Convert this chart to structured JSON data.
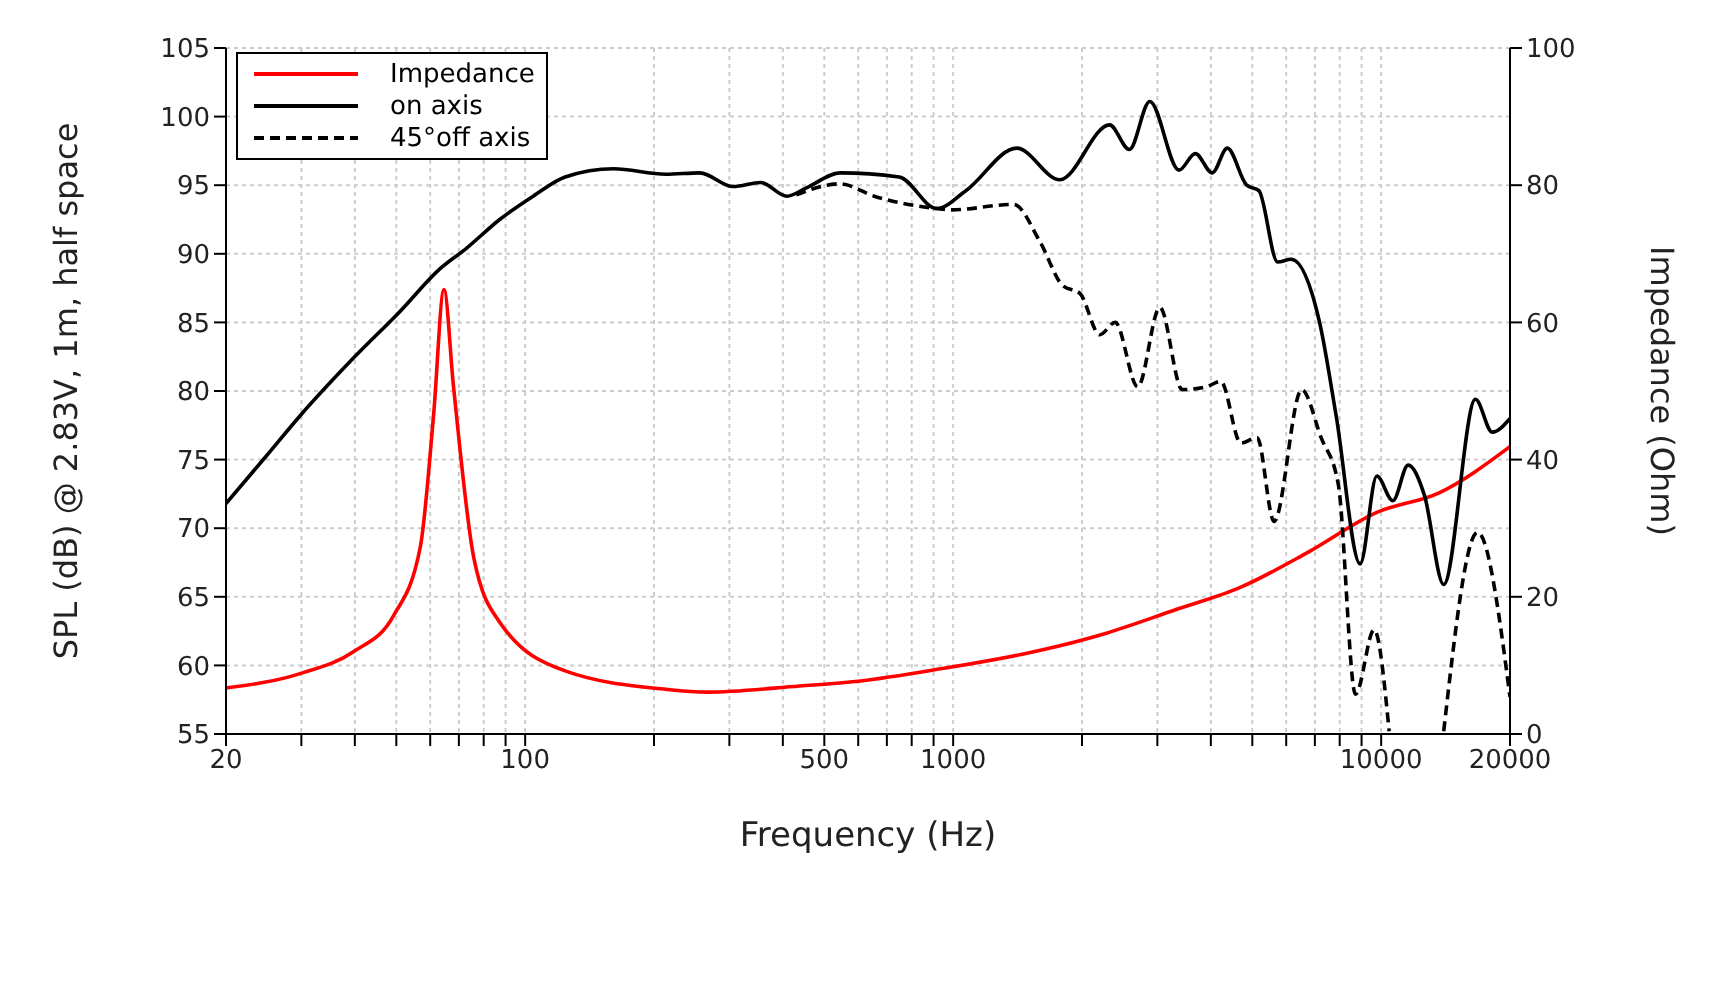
{
  "chart_data": {
    "type": "line",
    "xlabel": "Frequency (Hz)",
    "ylabel": "SPL (dB) @ 2.83V, 1m, half space",
    "y2label": "Impedance (Ohm)",
    "log": "x",
    "grid": true,
    "legend": "top left",
    "marker": "none",
    "xlim": [
      20,
      20000
    ],
    "xticks": [
      20,
      {
        "value": 30,
        "label": null
      },
      {
        "value": 40,
        "label": null
      },
      {
        "value": 50,
        "label": null
      },
      {
        "value": 60,
        "label": null
      },
      {
        "value": 70,
        "label": null
      },
      {
        "value": 80,
        "label": null
      },
      {
        "value": 90,
        "label": null
      },
      100,
      {
        "value": 200,
        "label": null
      },
      {
        "value": 300,
        "label": null
      },
      {
        "value": 400,
        "label": null
      },
      500,
      {
        "value": 600,
        "label": null
      },
      {
        "value": 700,
        "label": null
      },
      {
        "value": 800,
        "label": null
      },
      {
        "value": 900,
        "label": null
      },
      1000,
      {
        "value": 2000,
        "label": null
      },
      {
        "value": 3000,
        "label": null
      },
      {
        "value": 4000,
        "label": null
      },
      {
        "value": 5000,
        "label": null
      },
      {
        "value": 6000,
        "label": null
      },
      {
        "value": 7000,
        "label": null
      },
      {
        "value": 8000,
        "label": null
      },
      {
        "value": 9000,
        "label": null
      },
      10000,
      20000
    ],
    "ylim": [
      55,
      105
    ],
    "yticks": [
      55,
      60,
      65,
      70,
      75,
      80,
      85,
      90,
      95,
      100,
      105
    ],
    "y2lim": [
      0,
      100
    ],
    "y2ticks": [
      0,
      20,
      40,
      60,
      80,
      100
    ],
    "series": [
      {
        "name": "Impedance",
        "color": "#ff0000",
        "axis": "y2",
        "line_style": "solid",
        "x": [
          20,
          29.8,
          39.7,
          49.2,
          56.9,
          61.1,
          64.6,
          68,
          75.9,
          87.2,
          124,
          214,
          266,
          438,
          600,
          935,
          1600,
          2280,
          3270,
          4700,
          6710,
          9770,
          13700,
          20000
        ],
        "values": [
          6.7,
          8.8,
          12,
          17.2,
          27.3,
          46.5,
          64.8,
          50.7,
          25.6,
          16.3,
          9.2,
          6.5,
          6.1,
          7,
          7.7,
          9.5,
          12.2,
          14.7,
          18,
          21.4,
          26.4,
          32.3,
          35.2,
          41.9
        ]
      },
      {
        "name": "on axis",
        "color": "#000000",
        "line_style": "solid",
        "x": [
          20,
          24.9,
          29.8,
          39.7,
          51,
          63.2,
          72.9,
          87.2,
          104.4,
          124,
          161,
          213,
          256,
          306,
          355,
          409,
          454,
          544,
          748,
          915,
          1071,
          1408,
          1775,
          2320,
          2580,
          2880,
          3370,
          3680,
          4030,
          4370,
          4850,
          5180,
          5730,
          6160,
          7180,
          7850,
          8930,
          9770,
          10650,
          11560,
          12620,
          14000,
          16610,
          18170,
          20000
        ],
        "values": [
          71.8,
          75.3,
          78.2,
          82.4,
          85.8,
          88.9,
          90.4,
          92.5,
          94.2,
          95.6,
          96.2,
          95.8,
          95.9,
          94.9,
          95.2,
          94.2,
          94.8,
          95.9,
          95.6,
          93.3,
          94.6,
          97.7,
          95.4,
          99.4,
          97.6,
          101.1,
          96.1,
          97.3,
          95.9,
          97.7,
          95,
          94.6,
          89.4,
          89.6,
          85,
          78.2,
          67.4,
          73.8,
          72,
          74.6,
          72.4,
          65.9,
          79.4,
          77,
          78
        ]
      },
      {
        "name": "45°off axis",
        "color": "#000000",
        "line_style": "dashed",
        "x": [
          430,
          544,
          654,
          915,
          989,
          1384,
          1600,
          1800,
          1980,
          2200,
          2390,
          2700,
          3040,
          3430,
          3900,
          4220,
          4700,
          5130,
          5620,
          6520,
          7240,
          7940,
          8710,
          9630,
          10440,
          10700,
          13500,
          14000,
          16800,
          20000
        ],
        "values": [
          94.3,
          95.1,
          94.2,
          93.3,
          93.2,
          93.6,
          90.8,
          87.7,
          87.1,
          84.1,
          85,
          80.3,
          86.1,
          80.1,
          80.3,
          80.7,
          76.2,
          76.6,
          70.5,
          80.1,
          76.6,
          73.2,
          57.9,
          62.6,
          55.2,
          null,
          null,
          55.2,
          69.7,
          57.7
        ]
      }
    ]
  }
}
